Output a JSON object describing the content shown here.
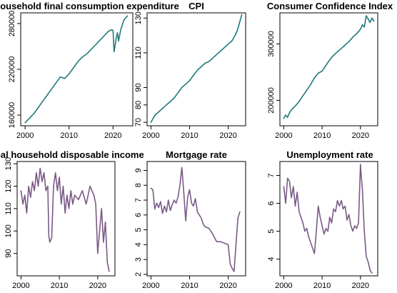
{
  "colors": {
    "teal": "#1f7a7a",
    "purple": "#7a5a86"
  },
  "chart_data": [
    {
      "type": "line",
      "title": "Real household final consumption expenditure",
      "color": "teal",
      "xlim": [
        1999.0,
        2024.5
      ],
      "ylim": [
        146000,
        294000
      ],
      "xticks": [
        2000,
        2010,
        2020
      ],
      "yticks": [
        160000,
        220000,
        280000
      ],
      "grid": false,
      "x": [
        2000,
        2001,
        2002,
        2003,
        2004,
        2005,
        2006,
        2007,
        2008,
        2009,
        2010,
        2011,
        2012,
        2013,
        2014,
        2015,
        2016,
        2017,
        2018,
        2019,
        2019.75,
        2020.0,
        2020.25,
        2020.75,
        2021.0,
        2021.25,
        2021.75,
        2022.5,
        2023.25
      ],
      "y": [
        150000,
        156000,
        162000,
        170000,
        178000,
        186000,
        194000,
        202000,
        210000,
        208000,
        214000,
        222000,
        230000,
        236000,
        240000,
        246000,
        252000,
        258000,
        264000,
        270000,
        272000,
        271000,
        243000,
        262000,
        268000,
        257000,
        272000,
        285000,
        290000
      ]
    },
    {
      "type": "line",
      "title": "CPI",
      "color": "teal",
      "xlim": [
        1999.0,
        2024.5
      ],
      "ylim": [
        68,
        133
      ],
      "xticks": [
        2000,
        2010,
        2020
      ],
      "yticks": [
        70,
        80,
        90,
        110,
        130
      ],
      "grid": false,
      "x": [
        2000,
        2000.5,
        2001,
        2002,
        2003,
        2004,
        2005,
        2006,
        2007,
        2008,
        2009,
        2010,
        2011,
        2012,
        2013,
        2014,
        2015,
        2016,
        2017,
        2018,
        2019,
        2020,
        2021,
        2021.5,
        2022,
        2022.5,
        2023,
        2023.5
      ],
      "y": [
        70,
        72,
        74,
        76,
        78,
        80,
        82,
        84,
        87,
        90,
        92,
        94,
        97,
        100,
        102,
        104,
        105,
        107,
        109,
        111,
        113,
        115,
        117,
        119,
        121,
        124,
        128,
        132
      ]
    },
    {
      "type": "line",
      "title": "Consumer Confidence Index",
      "color": "teal",
      "xlim": [
        1999.0,
        2024.5
      ],
      "ylim": [
        155000,
        355000
      ],
      "xticks": [
        2000,
        2010,
        2020
      ],
      "yticks": [
        200000,
        300000
      ],
      "grid": false,
      "x": [
        2000,
        2000.5,
        2001,
        2001.5,
        2002,
        2003,
        2004,
        2005,
        2006,
        2007,
        2008,
        2009,
        2010,
        2011,
        2012,
        2013,
        2014,
        2015,
        2016,
        2017,
        2018,
        2019,
        2020,
        2020.5,
        2021,
        2021.5,
        2022,
        2022.5,
        2023,
        2023.5
      ],
      "y": [
        168000,
        174000,
        170000,
        178000,
        183000,
        190000,
        198000,
        208000,
        218000,
        228000,
        240000,
        248000,
        252000,
        262000,
        272000,
        280000,
        286000,
        292000,
        298000,
        304000,
        312000,
        318000,
        326000,
        334000,
        330000,
        350000,
        344000,
        338000,
        346000,
        340000
      ]
    },
    {
      "type": "line",
      "title": "Real household disposable income",
      "color": "purple",
      "xlim": [
        1999.0,
        2024.5
      ],
      "ylim": [
        80,
        131
      ],
      "xticks": [
        2000,
        2010,
        2020
      ],
      "yticks": [
        90,
        100,
        110,
        120,
        130
      ],
      "grid": false,
      "x": [
        2000,
        2000.5,
        2001,
        2001.5,
        2002,
        2002.5,
        2003,
        2003.5,
        2004,
        2004.5,
        2005,
        2005.5,
        2006,
        2006.5,
        2007,
        2007.25,
        2007.5,
        2008,
        2008.5,
        2009,
        2009.5,
        2010,
        2010.5,
        2011,
        2011.5,
        2012,
        2012.5,
        2013,
        2013.5,
        2014,
        2015,
        2016,
        2017,
        2018,
        2019,
        2019.5,
        2020,
        2020.5,
        2021,
        2021.5,
        2022,
        2022.5,
        2023
      ],
      "y": [
        118,
        112,
        116,
        108,
        120,
        115,
        122,
        118,
        126,
        120,
        128,
        122,
        126,
        118,
        120,
        98,
        95,
        97,
        120,
        126,
        118,
        124,
        112,
        120,
        108,
        116,
        110,
        118,
        112,
        116,
        114,
        118,
        112,
        120,
        116,
        112,
        90,
        100,
        110,
        95,
        104,
        86,
        82
      ]
    },
    {
      "type": "line",
      "title": "Mortgage rate",
      "color": "purple",
      "xlim": [
        1999.0,
        2024.5
      ],
      "ylim": [
        1.9,
        9.6
      ],
      "xticks": [
        2000,
        2010,
        2020
      ],
      "yticks": [
        2,
        3,
        4,
        5,
        6,
        7,
        8,
        9
      ],
      "grid": false,
      "x": [
        2000,
        2000.5,
        2001,
        2001.5,
        2002,
        2002.5,
        2003,
        2003.5,
        2004,
        2004.5,
        2005,
        2005.5,
        2006,
        2006.5,
        2007,
        2007.5,
        2008,
        2008.5,
        2009,
        2009.5,
        2010,
        2010.5,
        2011,
        2011.5,
        2012,
        2012.5,
        2013,
        2013.5,
        2014,
        2015,
        2016,
        2017,
        2018,
        2019,
        2020,
        2020.5,
        2021,
        2021.5,
        2022,
        2022.5,
        2023
      ],
      "y": [
        7.8,
        7.7,
        6.4,
        6.8,
        6.5,
        6.9,
        6.1,
        6.6,
        6.2,
        7.0,
        6.3,
        6.7,
        7.0,
        6.8,
        7.2,
        8.0,
        9.2,
        7.5,
        5.6,
        7.2,
        7.7,
        6.8,
        6.6,
        7.1,
        6.2,
        6.0,
        5.8,
        5.4,
        5.2,
        5.1,
        4.7,
        4.2,
        4.2,
        4.1,
        4.0,
        2.7,
        2.4,
        2.2,
        4.0,
        5.8,
        6.2
      ]
    },
    {
      "type": "line",
      "title": "Unemployment rate",
      "color": "purple",
      "xlim": [
        1999.0,
        2024.5
      ],
      "ylim": [
        3.4,
        7.5
      ],
      "xticks": [
        2000,
        2010,
        2020
      ],
      "yticks": [
        4,
        5,
        6,
        7
      ],
      "grid": false,
      "x": [
        2000,
        2000.5,
        2001,
        2001.5,
        2002,
        2002.5,
        2003,
        2003.5,
        2004,
        2004.5,
        2005,
        2005.5,
        2006,
        2006.5,
        2007,
        2007.5,
        2008,
        2008.5,
        2009,
        2009.5,
        2010,
        2010.5,
        2011,
        2011.5,
        2012,
        2012.5,
        2013,
        2013.5,
        2014,
        2014.5,
        2015,
        2015.5,
        2016,
        2016.5,
        2017,
        2017.5,
        2018,
        2018.5,
        2019,
        2019.5,
        2020,
        2020.25,
        2020.5,
        2021,
        2021.5,
        2022,
        2022.5,
        2023
      ],
      "y": [
        6.6,
        6.0,
        6.9,
        6.8,
        6.2,
        6.6,
        5.9,
        6.4,
        5.7,
        5.5,
        5.3,
        5.0,
        5.1,
        4.8,
        4.6,
        4.4,
        4.2,
        5.0,
        5.9,
        5.5,
        5.2,
        4.9,
        5.1,
        5.0,
        5.5,
        5.3,
        5.8,
        5.7,
        6.1,
        5.9,
        6.1,
        5.8,
        5.9,
        5.4,
        5.6,
        5.2,
        5.0,
        5.2,
        5.1,
        5.3,
        7.4,
        6.9,
        6.5,
        5.0,
        4.1,
        3.9,
        3.6,
        3.5
      ]
    }
  ]
}
